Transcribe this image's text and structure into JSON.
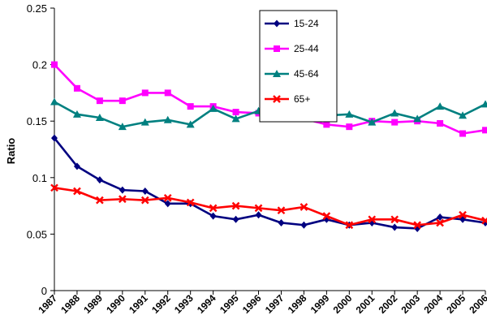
{
  "chart_data": {
    "type": "line",
    "xlabel": "",
    "ylabel": "Ratio",
    "ylim": [
      0,
      0.25
    ],
    "yticks": [
      "0",
      "0.05",
      "0.1",
      "0.15",
      "0.2",
      "0.25"
    ],
    "x": [
      "1987",
      "1988",
      "1989",
      "1990",
      "1991",
      "1992",
      "1993",
      "1994",
      "1995",
      "1996",
      "1997",
      "1998",
      "1999",
      "2000",
      "2001",
      "2002",
      "2003",
      "2004",
      "2005",
      "2006"
    ],
    "legend_position": "top-right",
    "grid": false,
    "series": [
      {
        "name": "15-24",
        "color": "#000080",
        "marker": "diamond",
        "values": [
          0.135,
          0.11,
          0.098,
          0.089,
          0.088,
          0.077,
          0.077,
          0.066,
          0.063,
          0.067,
          0.06,
          0.058,
          0.063,
          0.058,
          0.06,
          0.056,
          0.055,
          0.065,
          0.063,
          0.06
        ]
      },
      {
        "name": "25-44",
        "color": "#ff00ff",
        "marker": "square",
        "values": [
          0.2,
          0.179,
          0.168,
          0.168,
          0.175,
          0.175,
          0.163,
          0.163,
          0.158,
          0.157,
          0.155,
          0.152,
          0.147,
          0.145,
          0.15,
          0.149,
          0.15,
          0.148,
          0.139,
          0.142
        ]
      },
      {
        "name": "45-64",
        "color": "#008080",
        "marker": "triangle",
        "values": [
          0.167,
          0.156,
          0.153,
          0.145,
          0.149,
          0.151,
          0.147,
          0.161,
          0.152,
          0.159,
          0.155,
          0.16,
          0.155,
          0.156,
          0.149,
          0.157,
          0.152,
          0.163,
          0.155,
          0.165
        ]
      },
      {
        "name": "65+",
        "color": "#ff0000",
        "marker": "x",
        "values": [
          0.091,
          0.088,
          0.08,
          0.081,
          0.08,
          0.082,
          0.078,
          0.073,
          0.075,
          0.073,
          0.071,
          0.074,
          0.066,
          0.058,
          0.063,
          0.063,
          0.058,
          0.06,
          0.067,
          0.062
        ]
      }
    ]
  }
}
